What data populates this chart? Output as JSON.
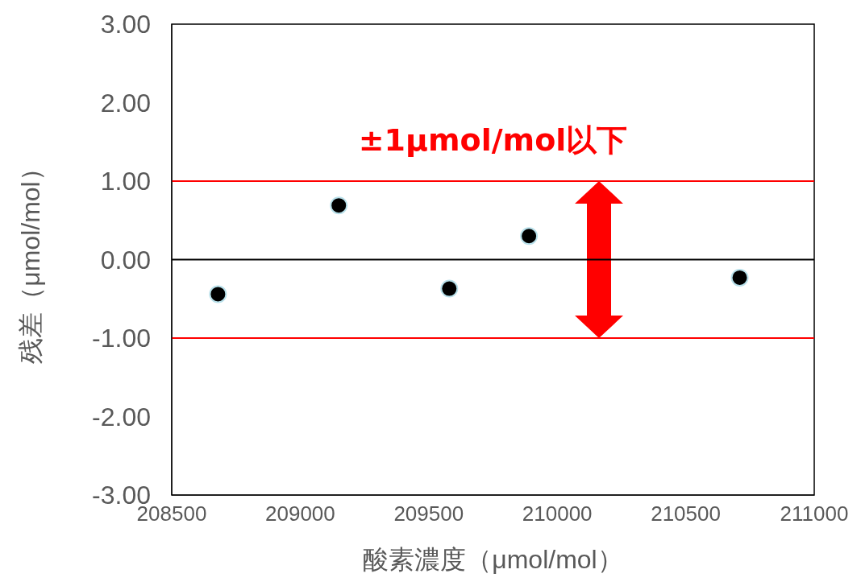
{
  "chart_data": {
    "type": "scatter",
    "xlabel": "酸素濃度（μmol/mol）",
    "ylabel": "残差（μmol/mol）",
    "x": [
      208680,
      209150,
      209580,
      209890,
      210710
    ],
    "values": [
      -0.44,
      0.69,
      -0.37,
      0.3,
      -0.23
    ],
    "color": "#000000",
    "marker": "circle",
    "xlim": [
      208500,
      211000
    ],
    "xticks": [
      208500,
      209000,
      209500,
      210000,
      210500,
      211000
    ],
    "ylim": [
      -3,
      3
    ],
    "yticks": [
      {
        "value": 3,
        "label": "3.00"
      },
      {
        "value": 2,
        "label": "2.00"
      },
      {
        "value": 1,
        "label": "1.00"
      },
      {
        "value": 0,
        "label": "0.00"
      },
      {
        "value": -1,
        "label": "-1.00"
      },
      {
        "value": -2,
        "label": "-2.00"
      },
      {
        "value": -3,
        "label": "-3.00"
      }
    ],
    "ref_lines": [
      {
        "axis": "y",
        "value": 1,
        "color": "#ff0000"
      },
      {
        "axis": "y",
        "value": -1,
        "color": "#ff0000"
      },
      {
        "axis": "y",
        "value": 0,
        "color": "#000000"
      }
    ],
    "annotations": [
      "±1μmol/mol以下"
    ],
    "grid": false,
    "legend": false
  }
}
